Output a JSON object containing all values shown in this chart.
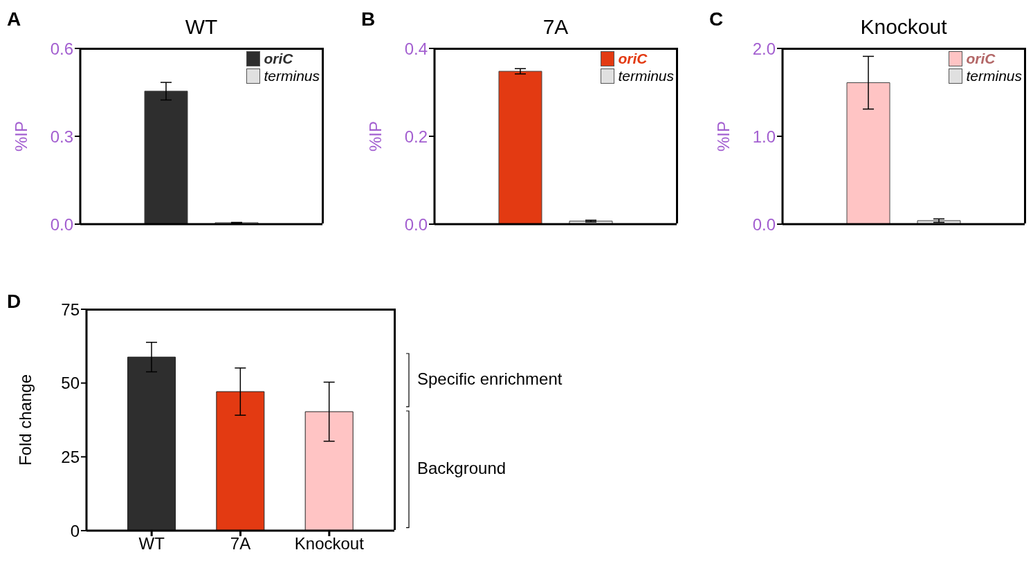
{
  "chart_data": [
    {
      "type": "bar",
      "title": "WT",
      "ylabel": "%IP",
      "categories": [
        null
      ],
      "ylim": [
        0,
        0.6
      ],
      "yticks": [
        {
          "value": 0,
          "label": "0.0"
        },
        0.3,
        0.6
      ],
      "legend": "top right",
      "tick_labels": "y",
      "annotations": [
        "A"
      ],
      "series": [
        {
          "name": "oriC",
          "color": "#2e2e2e",
          "values": [
            0.454
          ],
          "errors": [
            0.03
          ]
        },
        {
          "name": "terminus",
          "color": "#e0e0e0",
          "values": [
            0.005
          ],
          "errors": [
            0.001
          ]
        }
      ]
    },
    {
      "type": "bar",
      "title": "7A",
      "ylabel": "%IP",
      "categories": [
        null
      ],
      "ylim": [
        0,
        0.4
      ],
      "yticks": [
        {
          "value": 0,
          "label": "0.0"
        },
        0.2,
        0.4
      ],
      "legend": "top right",
      "tick_labels": "y",
      "annotations": [
        "B"
      ],
      "series": [
        {
          "name": "oriC",
          "color": "#e33a12",
          "values": [
            0.348
          ],
          "errors": [
            0.006
          ]
        },
        {
          "name": "terminus",
          "color": "#e0e0e0",
          "values": [
            0.007
          ],
          "errors": [
            0.002
          ]
        }
      ]
    },
    {
      "type": "bar",
      "title": "Knockout",
      "ylabel": "%IP",
      "categories": [
        null
      ],
      "ylim": [
        0,
        2
      ],
      "yticks": [
        {
          "value": 0,
          "label": "0.0"
        },
        {
          "value": 1,
          "label": "1.0"
        },
        {
          "value": 2,
          "label": "2.0"
        }
      ],
      "legend": "top right",
      "tick_labels": "y",
      "annotations": [
        "C"
      ],
      "series": [
        {
          "name": "oriC",
          "color": "#ffc4c4",
          "values": [
            1.61
          ],
          "errors": [
            0.3
          ]
        },
        {
          "name": "terminus",
          "color": "#e0e0e0",
          "values": [
            0.04
          ],
          "errors": [
            0.02
          ]
        }
      ]
    },
    {
      "type": "bar",
      "ylabel": "Fold change",
      "categories": [
        "WT",
        "7A",
        "Knockout"
      ],
      "values": [
        58.8,
        47.1,
        40.3
      ],
      "errors": [
        5,
        8,
        10
      ],
      "colors": [
        "#2e2e2e",
        "#e33a12",
        "#ffc4c4"
      ],
      "ylim": [
        0,
        75
      ],
      "yticks": [
        0,
        25,
        50,
        75
      ],
      "annotations": [
        "D",
        "Specific enrichment",
        "Background"
      ]
    }
  ]
}
